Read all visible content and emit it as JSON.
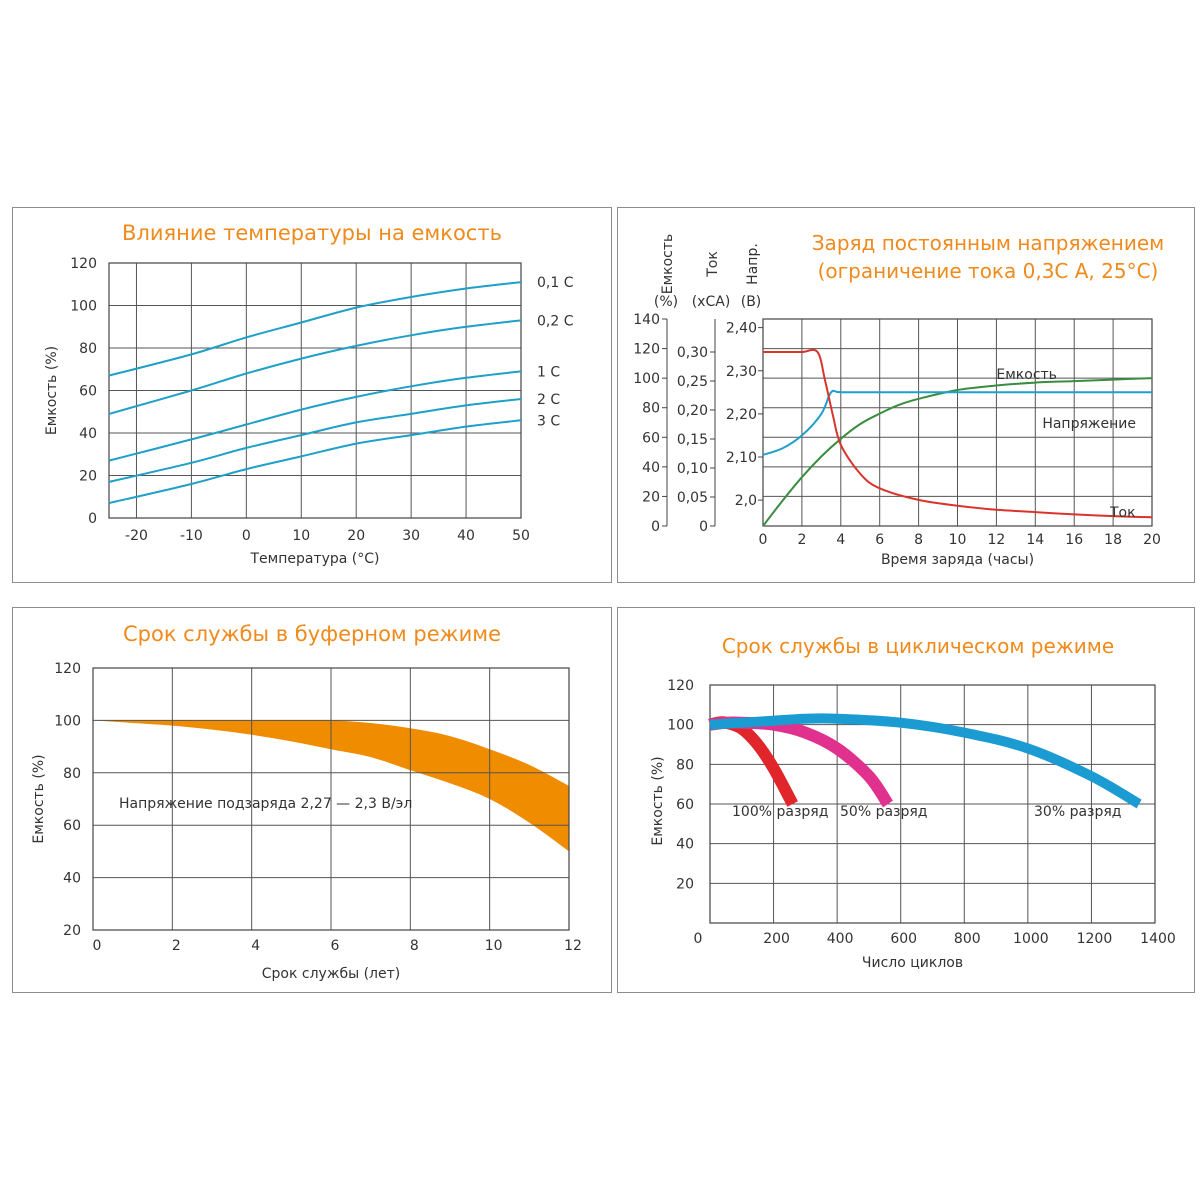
{
  "chart_data": [
    {
      "type": "line",
      "title": "Влияние температуры на емкость",
      "xlabel": "Температура (°C)",
      "ylabel": "Емкость (%)",
      "xlim": [
        -25,
        50
      ],
      "ylim": [
        0,
        120
      ],
      "x_ticks": [
        "-20",
        "-10",
        "0",
        "10",
        "20",
        "30",
        "40",
        "50"
      ],
      "y_ticks": [
        "0",
        "20",
        "40",
        "60",
        "80",
        "100",
        "120"
      ],
      "grid": true,
      "series": [
        {
          "name": "0,1 C",
          "color": "#1ea0c8",
          "x": [
            -25,
            -10,
            0,
            10,
            20,
            30,
            40,
            50
          ],
          "y": [
            67,
            77,
            85,
            92,
            99,
            104,
            108,
            111
          ]
        },
        {
          "name": "0,2 C",
          "color": "#1ea0c8",
          "x": [
            -25,
            -10,
            0,
            10,
            20,
            30,
            40,
            50
          ],
          "y": [
            49,
            60,
            68,
            75,
            81,
            86,
            90,
            93
          ]
        },
        {
          "name": "1 C",
          "color": "#1ea0c8",
          "x": [
            -25,
            -10,
            0,
            10,
            20,
            30,
            40,
            50
          ],
          "y": [
            27,
            37,
            44,
            51,
            57,
            62,
            66,
            69
          ]
        },
        {
          "name": "2 C",
          "color": "#1ea0c8",
          "x": [
            -25,
            -10,
            0,
            10,
            20,
            30,
            40,
            50
          ],
          "y": [
            17,
            26,
            33,
            39,
            45,
            49,
            53,
            56
          ]
        },
        {
          "name": "3 C",
          "color": "#1ea0c8",
          "x": [
            -25,
            -10,
            0,
            10,
            20,
            30,
            40,
            50
          ],
          "y": [
            7,
            16,
            23,
            29,
            35,
            39,
            43,
            46
          ]
        }
      ]
    },
    {
      "type": "line",
      "title": [
        "Заряд постоянным напряжением",
        "(ограничение тока 0,3C А, 25°C)"
      ],
      "xlabel": "Время заряда (часы)",
      "axis_headers": [
        {
          "name": "Емкость",
          "unit": "(%)"
        },
        {
          "name": "Ток",
          "unit": "(xCA)"
        },
        {
          "name": "Напр.",
          "unit": "(В)"
        }
      ],
      "xlim": [
        0,
        20
      ],
      "x_ticks": [
        "0",
        "2",
        "4",
        "6",
        "8",
        "10",
        "12",
        "14",
        "16",
        "18",
        "20"
      ],
      "y_ticks_capacity": [
        "0",
        "20",
        "40",
        "60",
        "80",
        "100",
        "120",
        "140"
      ],
      "y_ticks_current": [
        "0",
        "0,05",
        "0,10",
        "0,15",
        "0,20",
        "0,25",
        "0,30"
      ],
      "y_ticks_voltage": [
        "2,0",
        "2,10",
        "2,20",
        "2,30",
        "2,40"
      ],
      "grid": true,
      "series": [
        {
          "name": "Емкость",
          "color": "#3a8c3f",
          "axis": "capacity",
          "x": [
            0,
            1,
            2,
            3,
            4,
            5,
            6,
            7,
            8,
            10,
            12,
            14,
            16,
            18,
            20
          ],
          "y": [
            0,
            17,
            33,
            47,
            59,
            69,
            76,
            82,
            86,
            92,
            95,
            97,
            98,
            99,
            100
          ]
        },
        {
          "name": "Напряжение",
          "color": "#1ea0c8",
          "axis": "voltage",
          "x": [
            0,
            1,
            2,
            3,
            3.5,
            4,
            6,
            8,
            10,
            12,
            14,
            16,
            18,
            20
          ],
          "y": [
            2.105,
            2.12,
            2.15,
            2.2,
            2.25,
            2.25,
            2.25,
            2.25,
            2.25,
            2.25,
            2.25,
            2.25,
            2.25,
            2.25
          ]
        },
        {
          "name": "Ток",
          "color": "#d9342b",
          "axis": "current",
          "x": [
            0,
            1,
            2,
            2.8,
            3.2,
            3.6,
            4,
            5,
            6,
            8,
            10,
            12,
            14,
            16,
            18,
            20
          ],
          "y": [
            0.3,
            0.3,
            0.3,
            0.3,
            0.25,
            0.19,
            0.14,
            0.09,
            0.065,
            0.045,
            0.035,
            0.028,
            0.024,
            0.02,
            0.017,
            0.015
          ]
        }
      ]
    },
    {
      "type": "area",
      "title": "Срок службы в буферном режиме",
      "xlabel": "Срок службы (лет)",
      "ylabel": "Емкость (%)",
      "annotation": "Напряжение подзаряда 2,27 — 2,3 В/эл",
      "xlim": [
        0,
        12
      ],
      "ylim": [
        20,
        120
      ],
      "x_ticks": [
        "0",
        "2",
        "4",
        "6",
        "8",
        "10",
        "12"
      ],
      "y_ticks": [
        "20",
        "40",
        "60",
        "80",
        "100",
        "120"
      ],
      "grid": true,
      "color": "#f08c00",
      "band": {
        "x": [
          0,
          1,
          2,
          3,
          4,
          5,
          6,
          7,
          8,
          9,
          10,
          11,
          12
        ],
        "upper": [
          100,
          100,
          100,
          100,
          100,
          100,
          100,
          99,
          97,
          94,
          89,
          83,
          75
        ],
        "lower": [
          100,
          99,
          98,
          96.5,
          94.5,
          92,
          89,
          86,
          81,
          76,
          70,
          61,
          50
        ]
      }
    },
    {
      "type": "line",
      "title": "Срок службы в циклическом режиме",
      "xlabel": "Число циклов",
      "ylabel": "Емкость (%)",
      "xlim": [
        0,
        1400
      ],
      "ylim": [
        0,
        120
      ],
      "x_ticks": [
        "0",
        "200",
        "400",
        "600",
        "800",
        "1000",
        "1200",
        "1400"
      ],
      "y_ticks": [
        "20",
        "40",
        "60",
        "80",
        "100",
        "120"
      ],
      "grid": true,
      "series": [
        {
          "name": "100% разряд",
          "color": "#e0262b",
          "x": [
            0,
            25,
            50,
            100,
            150,
            200,
            260
          ],
          "y": [
            100,
            101,
            101,
            98,
            90,
            78,
            60
          ],
          "band_width": 12
        },
        {
          "name": "50% разряд",
          "color": "#e0318e",
          "x": [
            0,
            50,
            100,
            200,
            300,
            400,
            500,
            560
          ],
          "y": [
            100,
            101,
            101,
            100,
            96,
            88,
            74,
            60
          ],
          "band_width": 12
        },
        {
          "name": "30% разряд",
          "color": "#1a9bd1",
          "x": [
            0,
            100,
            200,
            300,
            400,
            600,
            800,
            1000,
            1200,
            1350
          ],
          "y": [
            100,
            101,
            102,
            103,
            103,
            101,
            96,
            88,
            74,
            60
          ],
          "band_width": 10
        }
      ]
    }
  ]
}
